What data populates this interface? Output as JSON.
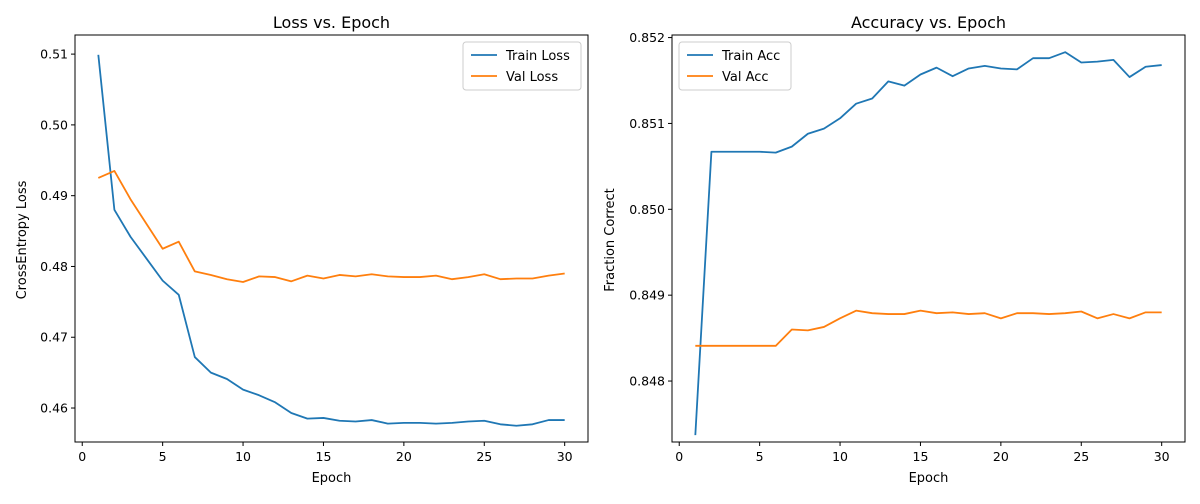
{
  "colors": {
    "train": "#1f77b4",
    "val": "#ff7f0e",
    "axis": "#000000",
    "background": "#ffffff"
  },
  "chart_data": [
    {
      "type": "line",
      "title": "Loss vs. Epoch",
      "xlabel": "Epoch",
      "ylabel": "CrossEntropy Loss",
      "xlim": [
        -0.45,
        31.45
      ],
      "ylim": [
        0.4552,
        0.5127
      ],
      "xticks": [
        0,
        5,
        10,
        15,
        20,
        25,
        30
      ],
      "xtick_labels": [
        "0",
        "5",
        "10",
        "15",
        "20",
        "25",
        "30"
      ],
      "yticks": [
        0.46,
        0.47,
        0.48,
        0.49,
        0.5,
        0.51
      ],
      "ytick_labels": [
        "0.46",
        "0.47",
        "0.48",
        "0.49",
        "0.50",
        "0.51"
      ],
      "legend": "upper right",
      "grid": false,
      "x": [
        1,
        2,
        3,
        4,
        5,
        6,
        7,
        8,
        9,
        10,
        11,
        12,
        13,
        14,
        15,
        16,
        17,
        18,
        19,
        20,
        21,
        22,
        23,
        24,
        25,
        26,
        27,
        28,
        29,
        30
      ],
      "series": [
        {
          "name": "Train Loss",
          "color": "#1f77b4",
          "values": [
            0.5099,
            0.488,
            0.4842,
            0.4811,
            0.478,
            0.476,
            0.4672,
            0.465,
            0.4641,
            0.4626,
            0.4618,
            0.4608,
            0.4593,
            0.4585,
            0.4586,
            0.4582,
            0.4581,
            0.4583,
            0.4578,
            0.4579,
            0.4579,
            0.4578,
            0.4579,
            0.4581,
            0.4582,
            0.4577,
            0.4575,
            0.4577,
            0.4583,
            0.4583
          ]
        },
        {
          "name": "Val Loss",
          "color": "#ff7f0e",
          "values": [
            0.4925,
            0.4935,
            0.4895,
            0.486,
            0.4825,
            0.4835,
            0.4793,
            0.4788,
            0.4782,
            0.4778,
            0.4786,
            0.4785,
            0.4779,
            0.4787,
            0.4783,
            0.4788,
            0.4786,
            0.4789,
            0.4786,
            0.4785,
            0.4785,
            0.4787,
            0.4782,
            0.4785,
            0.4789,
            0.4782,
            0.4783,
            0.4783,
            0.4787,
            0.479
          ]
        }
      ]
    },
    {
      "type": "line",
      "title": "Accuracy vs. Epoch",
      "xlabel": "Epoch",
      "ylabel": "Fraction Correct",
      "xlim": [
        -0.45,
        31.45
      ],
      "ylim": [
        0.84729,
        0.85203
      ],
      "xticks": [
        0,
        5,
        10,
        15,
        20,
        25,
        30
      ],
      "xtick_labels": [
        "0",
        "5",
        "10",
        "15",
        "20",
        "25",
        "30"
      ],
      "yticks": [
        0.848,
        0.849,
        0.85,
        0.851,
        0.852
      ],
      "ytick_labels": [
        "0.848",
        "0.849",
        "0.850",
        "0.851",
        "0.852"
      ],
      "legend": "upper left",
      "grid": false,
      "x": [
        1,
        2,
        3,
        4,
        5,
        6,
        7,
        8,
        9,
        10,
        11,
        12,
        13,
        14,
        15,
        16,
        17,
        18,
        19,
        20,
        21,
        22,
        23,
        24,
        25,
        26,
        27,
        28,
        29,
        30
      ],
      "series": [
        {
          "name": "Train Acc",
          "color": "#1f77b4",
          "values": [
            0.84737,
            0.85067,
            0.85067,
            0.85067,
            0.85067,
            0.85066,
            0.85073,
            0.85088,
            0.85094,
            0.85106,
            0.85123,
            0.85129,
            0.85149,
            0.85144,
            0.85157,
            0.85165,
            0.85155,
            0.85164,
            0.85167,
            0.85164,
            0.85163,
            0.85176,
            0.85176,
            0.85183,
            0.85171,
            0.85172,
            0.85174,
            0.85154,
            0.85166,
            0.85168
          ]
        },
        {
          "name": "Val Acc",
          "color": "#ff7f0e",
          "values": [
            0.84841,
            0.84841,
            0.84841,
            0.84841,
            0.84841,
            0.84841,
            0.8486,
            0.84859,
            0.84863,
            0.84873,
            0.84882,
            0.84879,
            0.84878,
            0.84878,
            0.84882,
            0.84879,
            0.8488,
            0.84878,
            0.84879,
            0.84873,
            0.84879,
            0.84879,
            0.84878,
            0.84879,
            0.84881,
            0.84873,
            0.84878,
            0.84873,
            0.8488,
            0.8488
          ]
        }
      ]
    }
  ]
}
